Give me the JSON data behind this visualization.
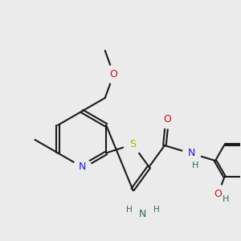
{
  "bg": "#ebebeb",
  "bc": "#1a1a1a",
  "bw": 1.5,
  "dbo": 0.055,
  "colors": {
    "N": "#1a1acc",
    "O": "#cc1111",
    "S": "#bbaa00",
    "NH": "#336666",
    "H": "#336666"
  },
  "fs": 9.0,
  "fsh": 8.0
}
